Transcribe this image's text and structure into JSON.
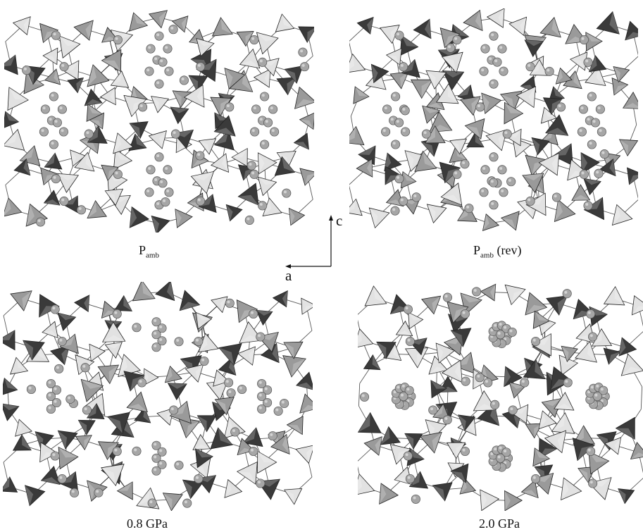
{
  "panels": [
    {
      "id": "pamb",
      "label_main": "P",
      "label_sub": "amb",
      "label_suffix": "",
      "guest": "pamb"
    },
    {
      "id": "pamb-rev",
      "label_main": "P",
      "label_sub": "amb",
      "label_suffix": " (rev)",
      "guest": "rev"
    },
    {
      "id": "p08",
      "label_main": "0.8 GPa",
      "label_sub": "",
      "label_suffix": "",
      "guest": "p08"
    },
    {
      "id": "p20",
      "label_main": "2.0 GPa",
      "label_sub": "",
      "label_suffix": "",
      "guest": "p20"
    }
  ],
  "axes": {
    "vertical": "c",
    "horizontal": "a"
  },
  "colors": {
    "tetra_dark": "#3a3a3a",
    "tetra_mid": "#9a9a9a",
    "tetra_light": "#e2e2e2",
    "atom": "#a6a6a6",
    "edge": "#222222"
  }
}
